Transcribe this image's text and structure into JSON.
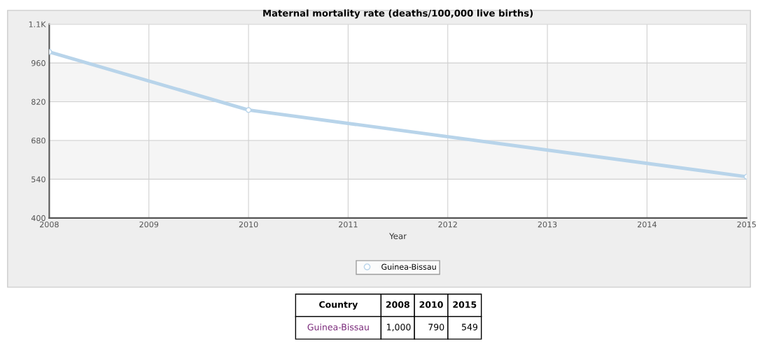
{
  "chart_data": {
    "type": "line",
    "title": "Maternal mortality rate (deaths/100,000 live births)",
    "xlabel": "Year",
    "x": [
      2008,
      2010,
      2015
    ],
    "series": [
      {
        "name": "Guinea-Bissau",
        "color": "#b8d4ea",
        "values": [
          1000,
          790,
          549
        ]
      }
    ],
    "xlim": [
      2008,
      2015
    ],
    "xticks": [
      2008,
      2009,
      2010,
      2011,
      2012,
      2013,
      2014,
      2015
    ],
    "ylim": [
      400,
      1100
    ],
    "yticks": [
      400,
      540,
      680,
      820,
      960,
      {
        "value": 1100,
        "label": "1.1K"
      }
    ],
    "annotations": [
      "Country",
      "2008",
      "2010",
      "2015",
      "1,000",
      "790",
      "549"
    ],
    "grid": true,
    "legend": "bottom",
    "marker": "circle",
    "line_style": "solid"
  }
}
